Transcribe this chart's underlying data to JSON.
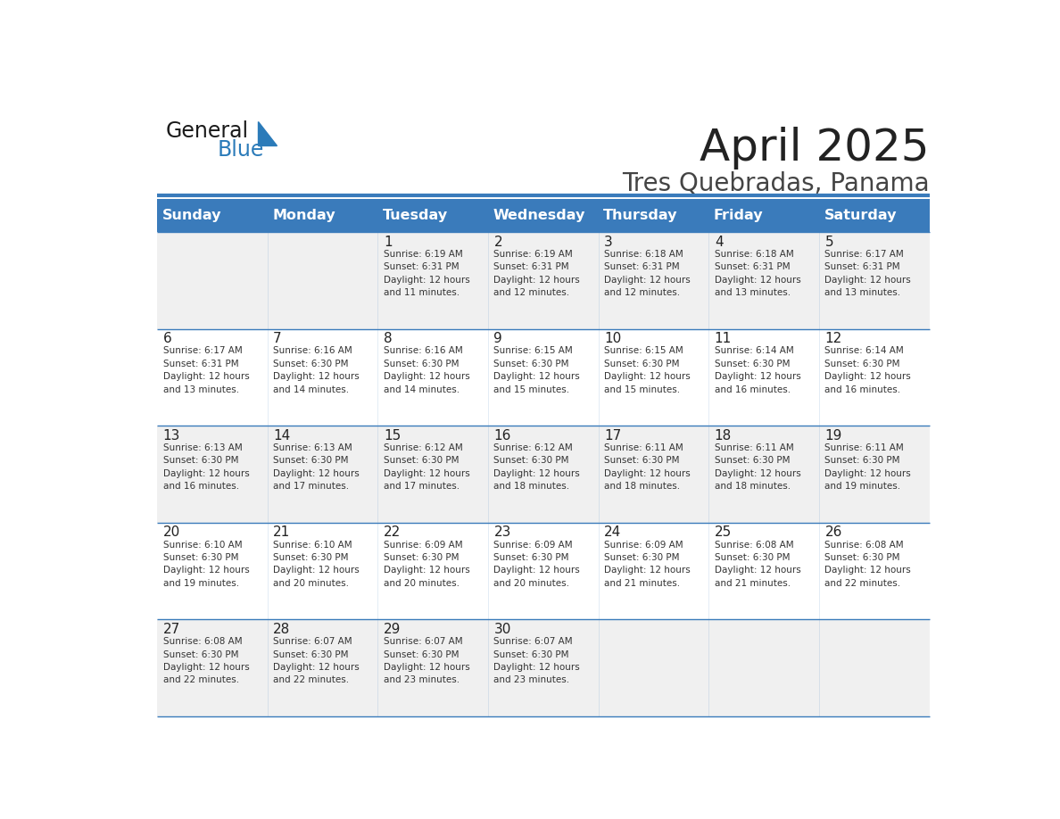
{
  "title": "April 2025",
  "subtitle": "Tres Quebradas, Panama",
  "header_color": "#3A7BBB",
  "header_text_color": "#FFFFFF",
  "grid_line_color": "#3A7BBB",
  "day_names": [
    "Sunday",
    "Monday",
    "Tuesday",
    "Wednesday",
    "Thursday",
    "Friday",
    "Saturday"
  ],
  "background_color": "#FFFFFF",
  "alt_row_color": "#F0F0F0",
  "cell_text_color": "#333333",
  "day_num_color": "#222222",
  "title_color": "#222222",
  "subtitle_color": "#444444",
  "logo_general_color": "#1A1A1A",
  "logo_blue_color": "#2B7BB9",
  "weeks": [
    [
      {
        "day": null,
        "info": null
      },
      {
        "day": null,
        "info": null
      },
      {
        "day": "1",
        "info": "Sunrise: 6:19 AM\nSunset: 6:31 PM\nDaylight: 12 hours\nand 11 minutes."
      },
      {
        "day": "2",
        "info": "Sunrise: 6:19 AM\nSunset: 6:31 PM\nDaylight: 12 hours\nand 12 minutes."
      },
      {
        "day": "3",
        "info": "Sunrise: 6:18 AM\nSunset: 6:31 PM\nDaylight: 12 hours\nand 12 minutes."
      },
      {
        "day": "4",
        "info": "Sunrise: 6:18 AM\nSunset: 6:31 PM\nDaylight: 12 hours\nand 13 minutes."
      },
      {
        "day": "5",
        "info": "Sunrise: 6:17 AM\nSunset: 6:31 PM\nDaylight: 12 hours\nand 13 minutes."
      }
    ],
    [
      {
        "day": "6",
        "info": "Sunrise: 6:17 AM\nSunset: 6:31 PM\nDaylight: 12 hours\nand 13 minutes."
      },
      {
        "day": "7",
        "info": "Sunrise: 6:16 AM\nSunset: 6:30 PM\nDaylight: 12 hours\nand 14 minutes."
      },
      {
        "day": "8",
        "info": "Sunrise: 6:16 AM\nSunset: 6:30 PM\nDaylight: 12 hours\nand 14 minutes."
      },
      {
        "day": "9",
        "info": "Sunrise: 6:15 AM\nSunset: 6:30 PM\nDaylight: 12 hours\nand 15 minutes."
      },
      {
        "day": "10",
        "info": "Sunrise: 6:15 AM\nSunset: 6:30 PM\nDaylight: 12 hours\nand 15 minutes."
      },
      {
        "day": "11",
        "info": "Sunrise: 6:14 AM\nSunset: 6:30 PM\nDaylight: 12 hours\nand 16 minutes."
      },
      {
        "day": "12",
        "info": "Sunrise: 6:14 AM\nSunset: 6:30 PM\nDaylight: 12 hours\nand 16 minutes."
      }
    ],
    [
      {
        "day": "13",
        "info": "Sunrise: 6:13 AM\nSunset: 6:30 PM\nDaylight: 12 hours\nand 16 minutes."
      },
      {
        "day": "14",
        "info": "Sunrise: 6:13 AM\nSunset: 6:30 PM\nDaylight: 12 hours\nand 17 minutes."
      },
      {
        "day": "15",
        "info": "Sunrise: 6:12 AM\nSunset: 6:30 PM\nDaylight: 12 hours\nand 17 minutes."
      },
      {
        "day": "16",
        "info": "Sunrise: 6:12 AM\nSunset: 6:30 PM\nDaylight: 12 hours\nand 18 minutes."
      },
      {
        "day": "17",
        "info": "Sunrise: 6:11 AM\nSunset: 6:30 PM\nDaylight: 12 hours\nand 18 minutes."
      },
      {
        "day": "18",
        "info": "Sunrise: 6:11 AM\nSunset: 6:30 PM\nDaylight: 12 hours\nand 18 minutes."
      },
      {
        "day": "19",
        "info": "Sunrise: 6:11 AM\nSunset: 6:30 PM\nDaylight: 12 hours\nand 19 minutes."
      }
    ],
    [
      {
        "day": "20",
        "info": "Sunrise: 6:10 AM\nSunset: 6:30 PM\nDaylight: 12 hours\nand 19 minutes."
      },
      {
        "day": "21",
        "info": "Sunrise: 6:10 AM\nSunset: 6:30 PM\nDaylight: 12 hours\nand 20 minutes."
      },
      {
        "day": "22",
        "info": "Sunrise: 6:09 AM\nSunset: 6:30 PM\nDaylight: 12 hours\nand 20 minutes."
      },
      {
        "day": "23",
        "info": "Sunrise: 6:09 AM\nSunset: 6:30 PM\nDaylight: 12 hours\nand 20 minutes."
      },
      {
        "day": "24",
        "info": "Sunrise: 6:09 AM\nSunset: 6:30 PM\nDaylight: 12 hours\nand 21 minutes."
      },
      {
        "day": "25",
        "info": "Sunrise: 6:08 AM\nSunset: 6:30 PM\nDaylight: 12 hours\nand 21 minutes."
      },
      {
        "day": "26",
        "info": "Sunrise: 6:08 AM\nSunset: 6:30 PM\nDaylight: 12 hours\nand 22 minutes."
      }
    ],
    [
      {
        "day": "27",
        "info": "Sunrise: 6:08 AM\nSunset: 6:30 PM\nDaylight: 12 hours\nand 22 minutes."
      },
      {
        "day": "28",
        "info": "Sunrise: 6:07 AM\nSunset: 6:30 PM\nDaylight: 12 hours\nand 22 minutes."
      },
      {
        "day": "29",
        "info": "Sunrise: 6:07 AM\nSunset: 6:30 PM\nDaylight: 12 hours\nand 23 minutes."
      },
      {
        "day": "30",
        "info": "Sunrise: 6:07 AM\nSunset: 6:30 PM\nDaylight: 12 hours\nand 23 minutes."
      },
      {
        "day": null,
        "info": null
      },
      {
        "day": null,
        "info": null
      },
      {
        "day": null,
        "info": null
      }
    ]
  ]
}
